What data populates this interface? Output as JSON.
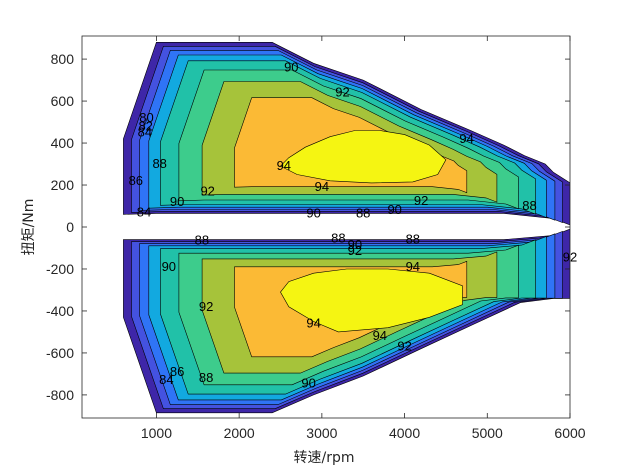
{
  "chart_data": {
    "type": "contour",
    "xlabel": "转速/rpm",
    "ylabel": "扭矩/Nm",
    "xlim": [
      100,
      6000
    ],
    "ylim": [
      -910,
      910
    ],
    "xticks": [
      1000,
      2000,
      3000,
      4000,
      5000,
      6000
    ],
    "yticks": [
      -800,
      -600,
      -400,
      -200,
      0,
      200,
      400,
      600,
      800
    ],
    "grid": false,
    "legend": "none",
    "levels": [
      80,
      82,
      84,
      86,
      88,
      90,
      92,
      94
    ],
    "level_colors": {
      "80": "#3e26a8",
      "82": "#4452e0",
      "84": "#2f74f6",
      "86": "#12a9e0",
      "88": "#21c1a8",
      "90": "#3dcc8c",
      "92": "#a6c33a",
      "94": "#fbba35",
      "peak": "#f5f512"
    },
    "regions": {
      "motoring": {
        "boundary": [
          [
            600,
            60
          ],
          [
            600,
            420
          ],
          [
            1000,
            880
          ],
          [
            2400,
            880
          ],
          [
            2900,
            780
          ],
          [
            3500,
            700
          ],
          [
            4200,
            560
          ],
          [
            4800,
            460
          ],
          [
            5200,
            390
          ],
          [
            5450,
            340
          ],
          [
            5700,
            300
          ],
          [
            5800,
            260
          ],
          [
            6000,
            210
          ],
          [
            6000,
            10
          ],
          [
            5800,
            40
          ],
          [
            5200,
            65
          ],
          [
            1000,
            65
          ]
        ],
        "eff_94_contour": [
          [
            2500,
            290
          ],
          [
            2600,
            330
          ],
          [
            2800,
            380
          ],
          [
            3100,
            430
          ],
          [
            3400,
            460
          ],
          [
            3700,
            460
          ],
          [
            4000,
            440
          ],
          [
            4300,
            390
          ],
          [
            4500,
            320
          ],
          [
            4400,
            250
          ],
          [
            4100,
            215
          ],
          [
            3600,
            210
          ],
          [
            3100,
            220
          ],
          [
            2700,
            250
          ]
        ]
      },
      "generating": {
        "boundary": [
          [
            600,
            -60
          ],
          [
            1000,
            -60
          ],
          [
            5200,
            -60
          ],
          [
            5800,
            -40
          ],
          [
            6000,
            -10
          ],
          [
            6000,
            -340
          ],
          [
            5800,
            -340
          ],
          [
            5400,
            -360
          ],
          [
            4800,
            -470
          ],
          [
            4200,
            -580
          ],
          [
            3500,
            -710
          ],
          [
            2900,
            -800
          ],
          [
            2400,
            -885
          ],
          [
            1000,
            -885
          ],
          [
            600,
            -430
          ]
        ],
        "eff_94_contour": [
          [
            2500,
            -310
          ],
          [
            2600,
            -260
          ],
          [
            2900,
            -220
          ],
          [
            3300,
            -200
          ],
          [
            3800,
            -200
          ],
          [
            4300,
            -220
          ],
          [
            4700,
            -280
          ],
          [
            4700,
            -370
          ],
          [
            4300,
            -430
          ],
          [
            3800,
            -480
          ],
          [
            3200,
            -500
          ],
          [
            2900,
            -450
          ],
          [
            2600,
            -380
          ]
        ]
      }
    },
    "contour_labels": [
      {
        "text": "90",
        "x": 2630,
        "y": 760
      },
      {
        "text": "92",
        "x": 3250,
        "y": 640
      },
      {
        "text": "94",
        "x": 4750,
        "y": 420
      },
      {
        "text": "94",
        "x": 2540,
        "y": 290
      },
      {
        "text": "94",
        "x": 3000,
        "y": 190
      },
      {
        "text": "92",
        "x": 1620,
        "y": 170
      },
      {
        "text": "90",
        "x": 1250,
        "y": 120
      },
      {
        "text": "92",
        "x": 4200,
        "y": 125
      },
      {
        "text": "90",
        "x": 3880,
        "y": 80
      },
      {
        "text": "88",
        "x": 5510,
        "y": 100
      },
      {
        "text": "88",
        "x": 1040,
        "y": 300
      },
      {
        "text": "86",
        "x": 750,
        "y": 220
      },
      {
        "text": "84",
        "x": 860,
        "y": 450
      },
      {
        "text": "82",
        "x": 870,
        "y": 480
      },
      {
        "text": "80",
        "x": 880,
        "y": 520
      },
      {
        "text": "84",
        "x": 850,
        "y": 70
      },
      {
        "text": "90",
        "x": 2900,
        "y": 65
      },
      {
        "text": "88",
        "x": 3500,
        "y": 65
      },
      {
        "text": "88",
        "x": 1550,
        "y": -65
      },
      {
        "text": "88",
        "x": 3200,
        "y": -55
      },
      {
        "text": "90",
        "x": 3400,
        "y": -85
      },
      {
        "text": "88",
        "x": 4100,
        "y": -60
      },
      {
        "text": "92",
        "x": 3400,
        "y": -115
      },
      {
        "text": "90",
        "x": 1150,
        "y": -190
      },
      {
        "text": "94",
        "x": 4100,
        "y": -190
      },
      {
        "text": "92",
        "x": 1600,
        "y": -380
      },
      {
        "text": "94",
        "x": 2900,
        "y": -460
      },
      {
        "text": "94",
        "x": 3700,
        "y": -520
      },
      {
        "text": "92",
        "x": 4000,
        "y": -570
      },
      {
        "text": "88",
        "x": 1600,
        "y": -720
      },
      {
        "text": "86",
        "x": 1250,
        "y": -690
      },
      {
        "text": "84",
        "x": 1120,
        "y": -730
      },
      {
        "text": "90",
        "x": 2840,
        "y": -745
      },
      {
        "text": "92",
        "x": 6000,
        "y": -145
      }
    ]
  }
}
